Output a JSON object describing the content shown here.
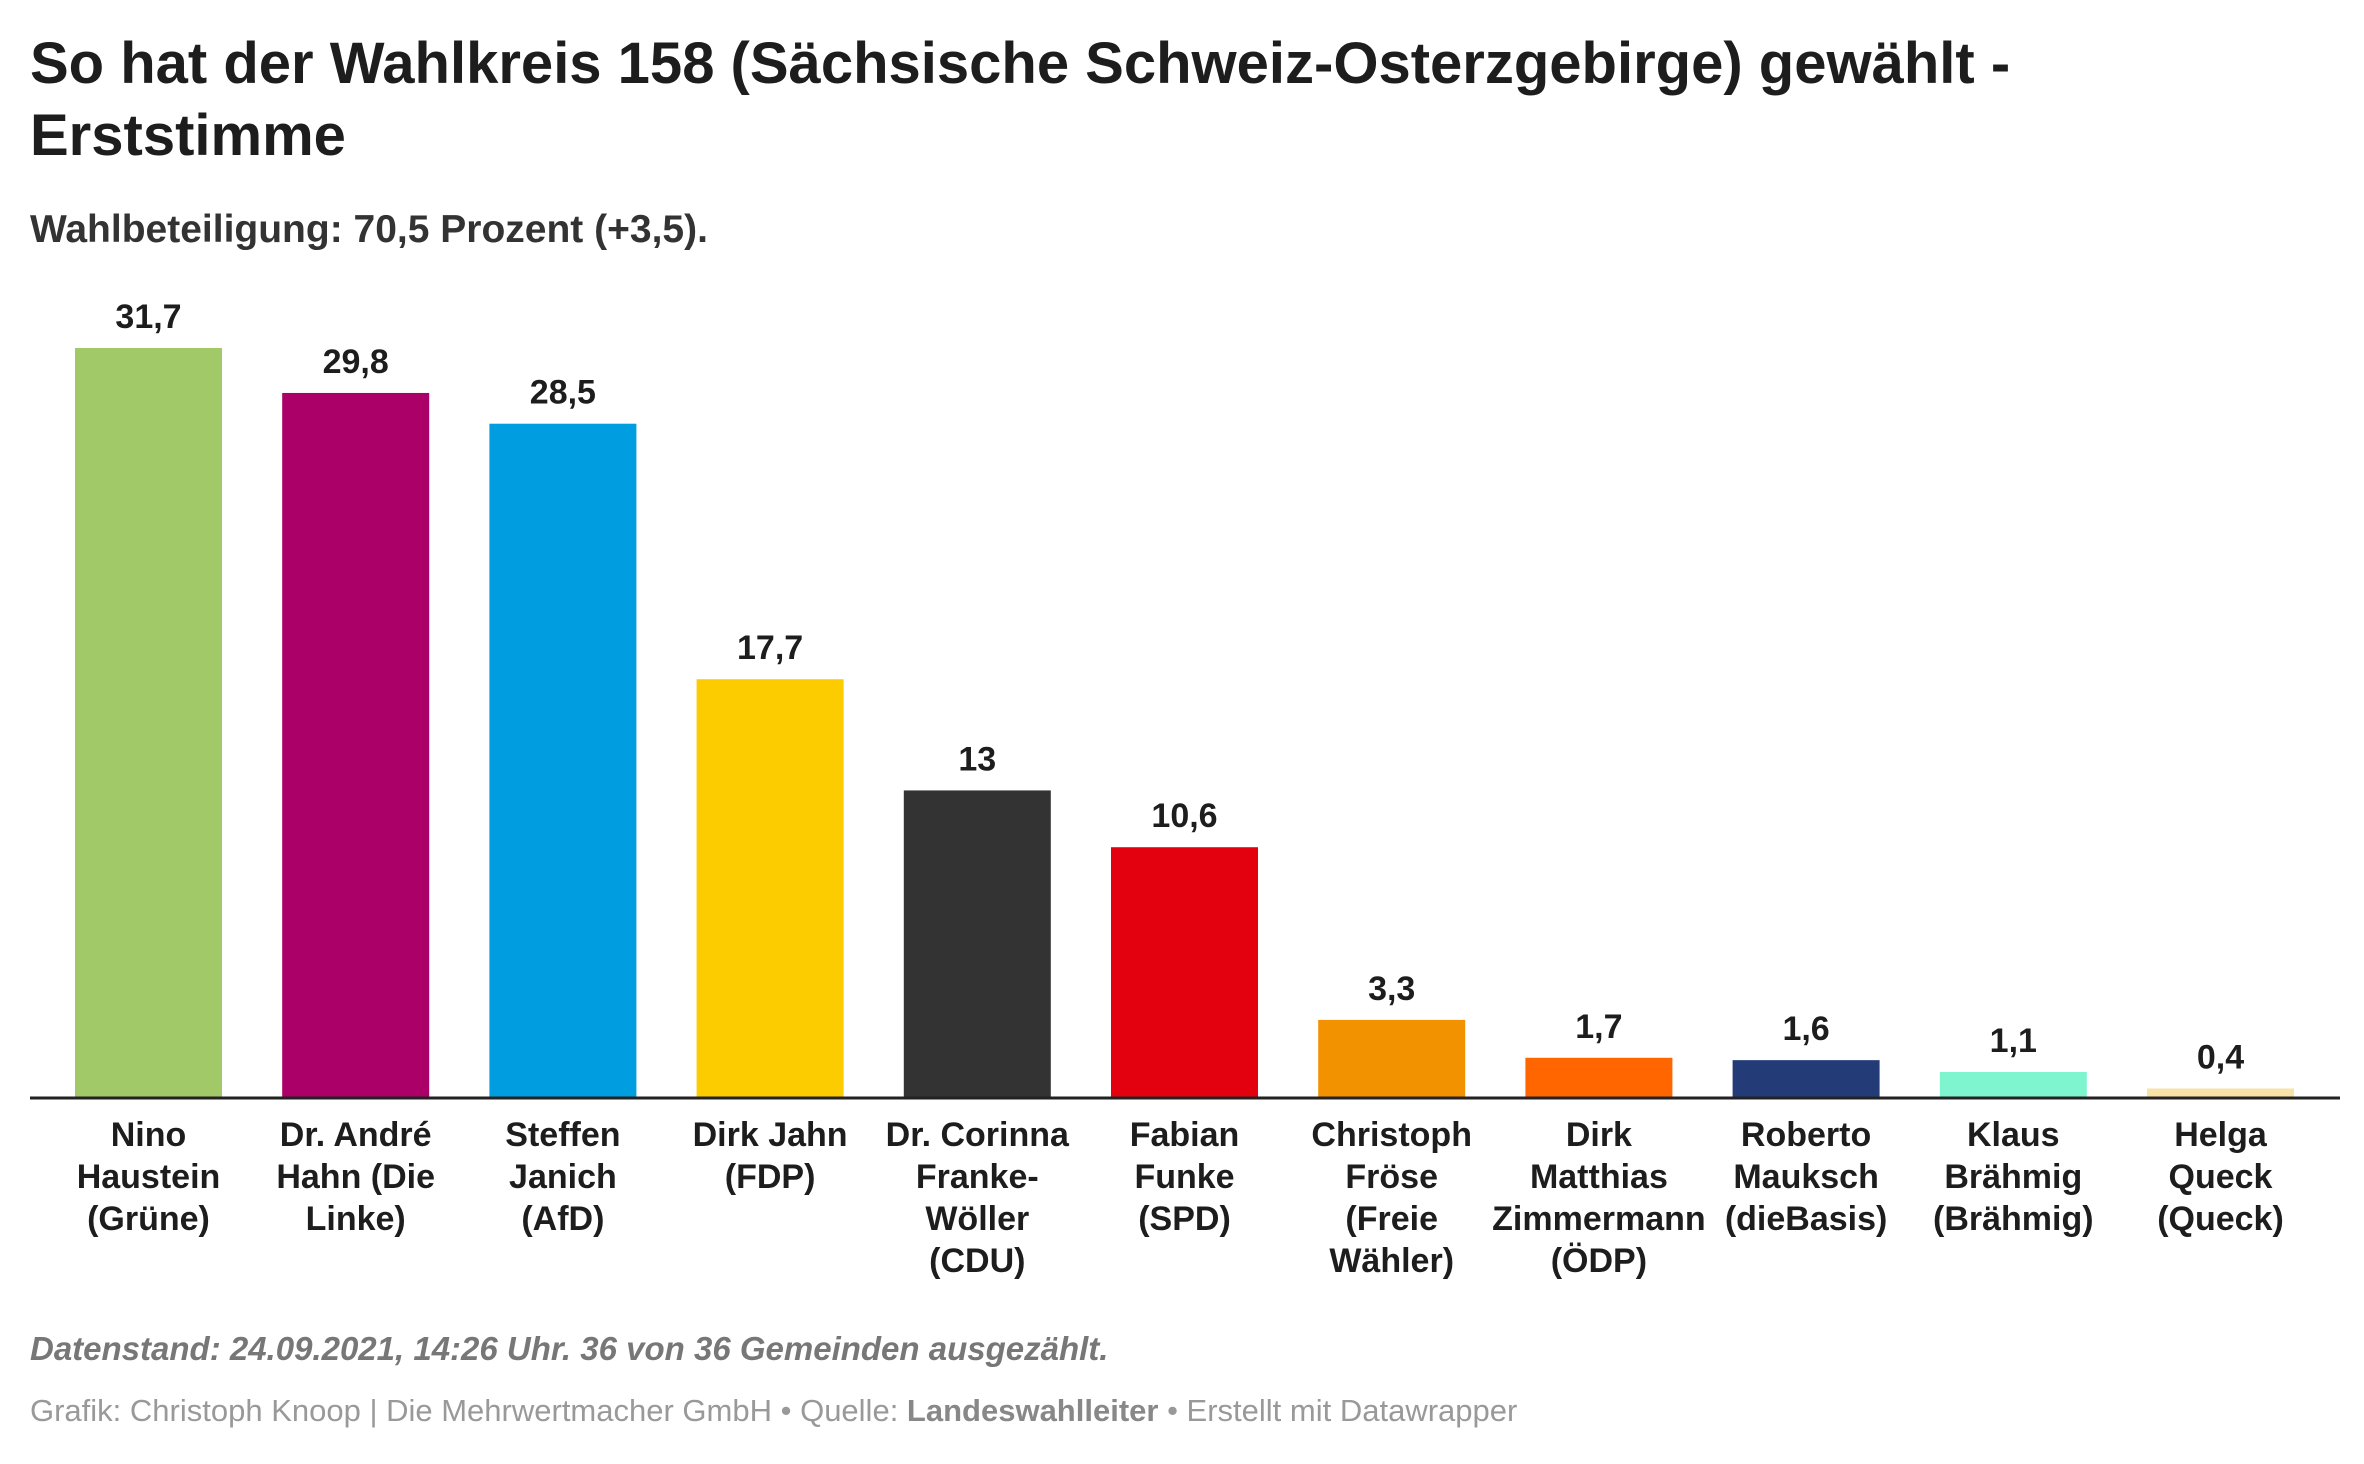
{
  "title": "So hat der Wahlkreis 158 (Sächsische Schweiz-Osterzgebirge) gewählt - Erststimme",
  "subtitle": "Wahlbeteiligung: 70,5 Prozent (+3,5).",
  "notes": "Datenstand: 24.09.2021, 14:26 Uhr. 36 von 36 Gemeinden ausgezählt.",
  "footer": {
    "credit": "Grafik: Christoph Knoop | Die Mehrwertmacher GmbH",
    "sep1": " • ",
    "source_label": "Quelle: ",
    "source": "Landeswahlleiter",
    "sep2": " • ",
    "tool": "Erstellt mit Datawrapper"
  },
  "chart_data": {
    "type": "bar",
    "ylim": [
      0,
      31.7
    ],
    "grid": false,
    "categories": [
      [
        "Nino",
        "Haustein",
        "(Grüne)"
      ],
      [
        "Dr. André",
        "Hahn (Die",
        "Linke)"
      ],
      [
        "Steffen",
        "Janich",
        "(AfD)"
      ],
      [
        "Dirk Jahn",
        "(FDP)"
      ],
      [
        "Dr. Corinna",
        "Franke-",
        "Wöller",
        "(CDU)"
      ],
      [
        "Fabian",
        "Funke",
        "(SPD)"
      ],
      [
        "Christoph",
        "Fröse",
        "(Freie",
        "Wähler)"
      ],
      [
        "Dirk",
        "Matthias",
        "Zimmermann",
        "(ÖDP)"
      ],
      [
        "Roberto",
        "Mauksch",
        "(dieBasis)"
      ],
      [
        "Klaus",
        "Brähmig",
        "(Brähmig)"
      ],
      [
        "Helga",
        "Queck",
        "(Queck)"
      ]
    ],
    "values": [
      31.7,
      29.8,
      28.5,
      17.7,
      13,
      10.6,
      3.3,
      1.7,
      1.6,
      1.1,
      0.4
    ],
    "value_labels": [
      "31,7",
      "29,8",
      "28,5",
      "17,7",
      "13",
      "10,6",
      "3,3",
      "1,7",
      "1,6",
      "1,1",
      "0,4"
    ],
    "colors": [
      "#a1c968",
      "#aa0068",
      "#009ee0",
      "#fdcc00",
      "#333333",
      "#e3000f",
      "#f39200",
      "#ff6600",
      "#233c78",
      "#7ff5cf",
      "#f7e3a8"
    ]
  }
}
